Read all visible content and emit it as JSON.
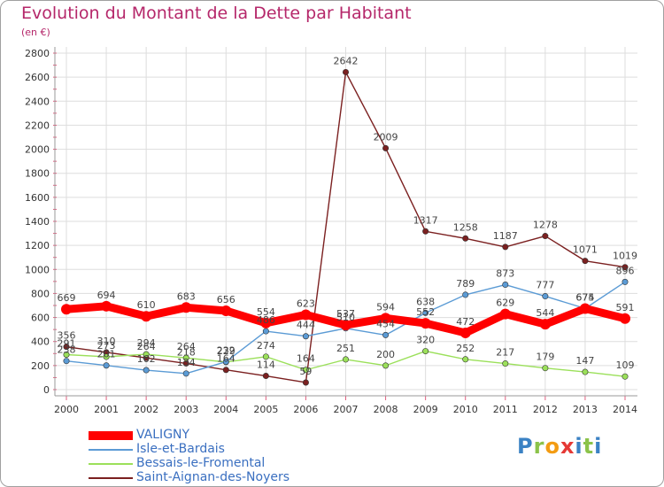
{
  "title": "Evolution du Montant de la Dette par Habitant",
  "subtitle": "(en €)",
  "logo_text": "Proxiti",
  "chart_data": {
    "type": "line",
    "x": [
      "2000",
      "2001",
      "2002",
      "2003",
      "2004",
      "2005",
      "2006",
      "2007",
      "2008",
      "2009",
      "2010",
      "2011",
      "2012",
      "2013",
      "2014"
    ],
    "ylim": [
      0,
      2800
    ],
    "yticks": [
      0,
      200,
      400,
      600,
      800,
      1000,
      1200,
      1400,
      1600,
      1800,
      2000,
      2200,
      2400,
      2600,
      2800
    ],
    "grid": true,
    "legend_position": "bottom-left",
    "series": [
      {
        "name": "VALIGNY",
        "color": "#ff0000",
        "values": [
          669,
          694,
          610,
          683,
          656,
          554,
          623,
          537,
          594,
          552,
          472,
          629,
          544,
          674,
          591
        ]
      },
      {
        "name": "Isle-et-Bardais",
        "color": "#5b9bd5",
        "values": [
          238,
          201,
          162,
          134,
          232,
          486,
          444,
          510,
          454,
          638,
          789,
          873,
          777,
          675,
          896
        ]
      },
      {
        "name": "Bessais-le-Fromental",
        "color": "#9be05a",
        "values": [
          291,
          273,
          294,
          264,
          229,
          274,
          164,
          251,
          200,
          320,
          252,
          217,
          179,
          147,
          109
        ]
      },
      {
        "name": "Saint-Aignan-des-Noyers",
        "color": "#7b2020",
        "values": [
          356,
          310,
          264,
          218,
          164,
          114,
          59,
          2642,
          2009,
          1317,
          1258,
          1187,
          1278,
          1071,
          1019
        ]
      }
    ],
    "data_labels": [
      [
        "669",
        "694",
        "610",
        "683",
        "656",
        "554",
        "623",
        "537",
        "594",
        "552",
        "472",
        "629",
        "544",
        "674",
        "591"
      ],
      [
        "238",
        "201",
        "162",
        "134",
        "232",
        "486",
        "444",
        "510",
        "454",
        "638",
        "789",
        "873",
        "777",
        "675",
        "896"
      ],
      [
        "291",
        "273",
        "294",
        "264",
        "229",
        "274",
        "164",
        "251",
        "200",
        "320",
        "252",
        "217",
        "179",
        "147",
        "109"
      ],
      [
        "356",
        "310",
        "264",
        "218",
        "164",
        "114",
        "59",
        "2642",
        "2009",
        "1317",
        "1258",
        "1187",
        "1278",
        "1071",
        "1019"
      ]
    ]
  }
}
